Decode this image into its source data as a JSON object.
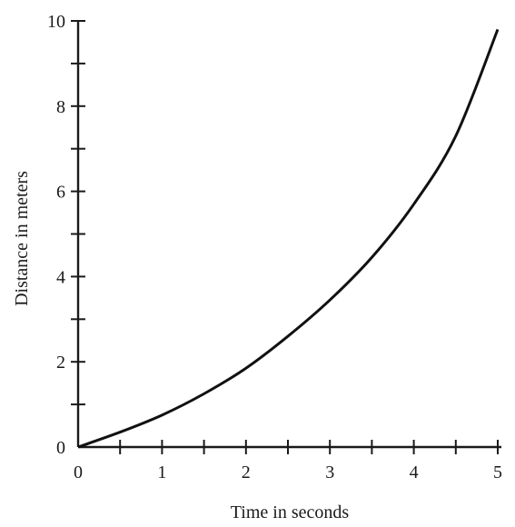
{
  "chart_data": {
    "type": "line",
    "title": "",
    "xlabel": "Time in seconds",
    "ylabel": "Distance in meters",
    "xlim": [
      0,
      5
    ],
    "ylim": [
      0,
      10
    ],
    "x_ticks_major": [
      0,
      1,
      2,
      3,
      4,
      5
    ],
    "x_ticks_minor_step": 0.5,
    "y_ticks_major": [
      0,
      2,
      4,
      6,
      8,
      10
    ],
    "y_ticks_minor_step": 1,
    "grid": false,
    "legend": "none",
    "series": [
      {
        "color": "#111111",
        "x": [
          0,
          0.5,
          1,
          1.5,
          2,
          2.5,
          3,
          3.5,
          4,
          4.5,
          5
        ],
        "y": [
          0,
          0.35,
          0.75,
          1.25,
          1.85,
          2.6,
          3.45,
          4.45,
          5.7,
          7.3,
          9.8
        ]
      }
    ]
  }
}
